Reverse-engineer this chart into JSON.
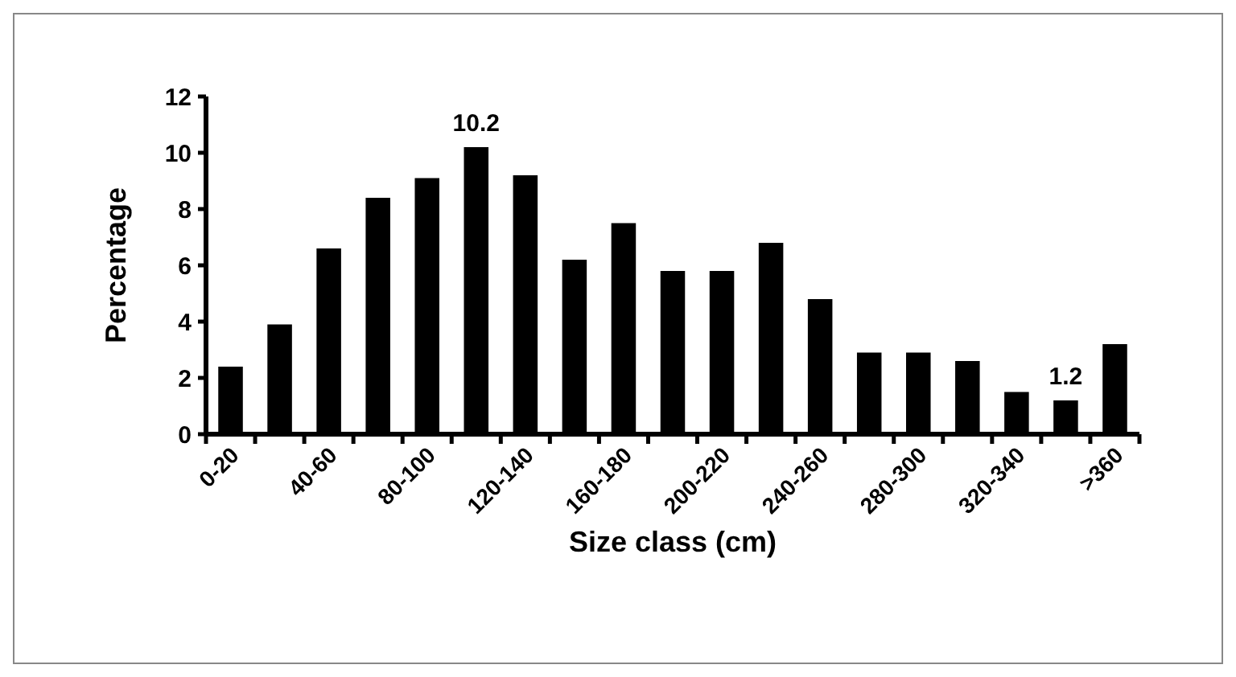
{
  "chart_data": {
    "type": "bar",
    "xlabel": "Size class (cm)",
    "ylabel": "Percentage",
    "categories": [
      "0-20",
      null,
      "40-60",
      null,
      "80-100",
      null,
      "120-140",
      null,
      "160-180",
      null,
      "200-220",
      null,
      "240-260",
      null,
      "280-300",
      null,
      "320-340",
      null,
      ">360"
    ],
    "values": [
      2.4,
      3.9,
      6.6,
      8.4,
      9.1,
      10.2,
      9.2,
      6.2,
      7.5,
      5.8,
      5.8,
      6.8,
      4.8,
      2.9,
      2.9,
      2.6,
      1.5,
      1.2,
      3.2
    ],
    "value_labels": [
      null,
      null,
      null,
      null,
      null,
      "10.2",
      null,
      null,
      null,
      null,
      null,
      null,
      null,
      null,
      null,
      null,
      null,
      "1.2",
      null
    ],
    "color": "#000000",
    "ylim": [
      0,
      12
    ],
    "yticks": [
      0,
      2,
      4,
      6,
      8,
      10,
      12
    ],
    "grid": false
  }
}
